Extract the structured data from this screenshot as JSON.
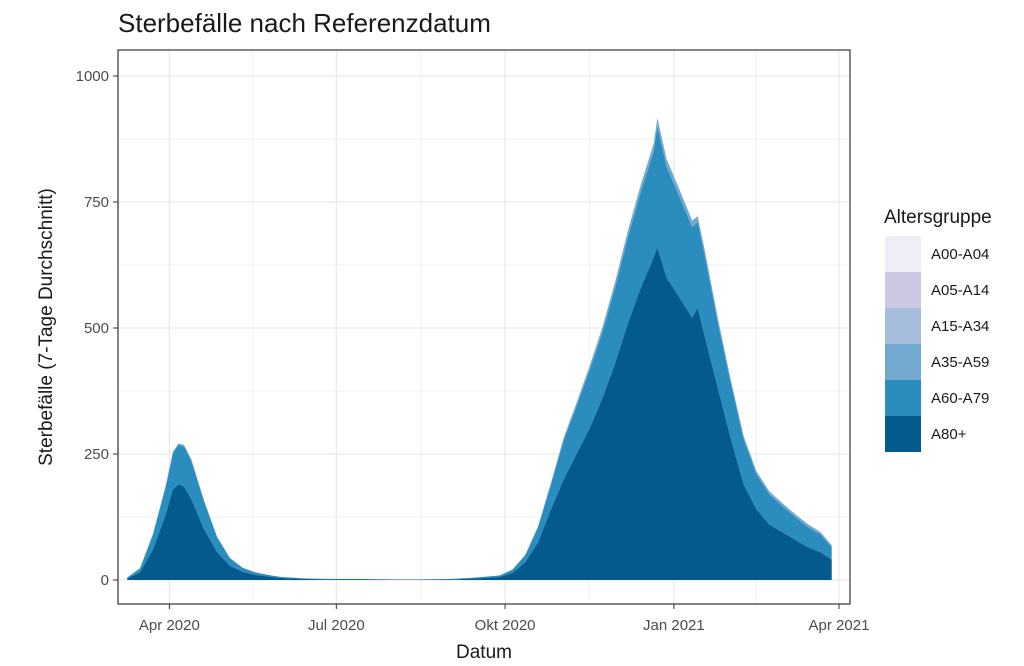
{
  "chart_data": {
    "type": "area",
    "stacked": true,
    "title": "Sterbefälle nach Referenzdatum",
    "xlabel": "Datum",
    "ylabel": "Sterbefälle (7-Tage Durchschnitt)",
    "ylim": [
      0,
      1000
    ],
    "y_ticks": [
      0,
      250,
      500,
      750,
      1000
    ],
    "y_tick_labels": [
      "0",
      "250",
      "500",
      "750",
      "1000"
    ],
    "x_ticks": [
      "2020-04-01",
      "2020-07-01",
      "2020-10-01",
      "2021-01-01",
      "2021-04-01"
    ],
    "x_tick_labels": [
      "Apr 2020",
      "Jul 2020",
      "Okt 2020",
      "Jan 2021",
      "Apr 2021"
    ],
    "xlim": [
      "2020-03-04",
      "2021-04-07"
    ],
    "grid": true,
    "legend_title": "Altersgruppe",
    "legend_position": "right",
    "dates": [
      "2020-03-09",
      "2020-03-16",
      "2020-03-23",
      "2020-03-30",
      "2020-04-03",
      "2020-04-06",
      "2020-04-09",
      "2020-04-13",
      "2020-04-20",
      "2020-04-27",
      "2020-05-04",
      "2020-05-11",
      "2020-05-18",
      "2020-05-25",
      "2020-06-01",
      "2020-06-15",
      "2020-07-01",
      "2020-07-15",
      "2020-08-01",
      "2020-08-15",
      "2020-09-01",
      "2020-09-15",
      "2020-09-28",
      "2020-10-05",
      "2020-10-12",
      "2020-10-19",
      "2020-10-26",
      "2020-11-02",
      "2020-11-09",
      "2020-11-16",
      "2020-11-23",
      "2020-11-30",
      "2020-12-07",
      "2020-12-14",
      "2020-12-21",
      "2020-12-23",
      "2020-12-28",
      "2021-01-04",
      "2021-01-11",
      "2021-01-14",
      "2021-01-18",
      "2021-01-25",
      "2021-02-01",
      "2021-02-08",
      "2021-02-15",
      "2021-02-22",
      "2021-03-01",
      "2021-03-08",
      "2021-03-15",
      "2021-03-22",
      "2021-03-28"
    ],
    "series": [
      {
        "name": "A00-A04",
        "color": "#efedf5",
        "values": [
          0,
          0,
          0,
          0,
          0,
          0,
          0,
          0,
          0,
          0,
          0,
          0,
          0,
          0,
          0,
          0,
          0,
          0,
          0,
          0,
          0,
          0,
          0,
          0,
          0,
          0,
          0,
          0,
          0,
          0,
          0,
          0,
          0,
          0,
          0,
          0,
          0,
          0,
          0,
          0,
          0,
          0,
          0,
          0,
          0,
          0,
          0,
          0,
          0,
          0,
          0
        ]
      },
      {
        "name": "A05-A14",
        "color": "#cbc9e2",
        "values": [
          0,
          0,
          0,
          0,
          0,
          0,
          0,
          0,
          0,
          0,
          0,
          0,
          0,
          0,
          0,
          0,
          0,
          0,
          0,
          0,
          0,
          0,
          0,
          0,
          0,
          0,
          0,
          0,
          0,
          0,
          0,
          0,
          0,
          0,
          0,
          0,
          0,
          0,
          0,
          0,
          0,
          0,
          0,
          0,
          0,
          0,
          0,
          0,
          0,
          0,
          0
        ]
      },
      {
        "name": "A15-A34",
        "color": "#a6bddb",
        "values": [
          0,
          0,
          0,
          0,
          0,
          0,
          0,
          0,
          0,
          0,
          0,
          0,
          0,
          0,
          0,
          0,
          0,
          0,
          0,
          0,
          0,
          0,
          0,
          0,
          0,
          0,
          0,
          0,
          0,
          0,
          0,
          0,
          0,
          0,
          0,
          0,
          0,
          0,
          0,
          0,
          0,
          0,
          0,
          0,
          0,
          0,
          0,
          0,
          0,
          0,
          0
        ]
      },
      {
        "name": "A35-A59",
        "color": "#74a9cf",
        "values": [
          0,
          0,
          1,
          2,
          3,
          3,
          3,
          3,
          2,
          1,
          1,
          0,
          0,
          0,
          0,
          0,
          0,
          0,
          0,
          0,
          0,
          0,
          0,
          1,
          1,
          2,
          3,
          5,
          7,
          9,
          11,
          12,
          14,
          15,
          16,
          17,
          16,
          15,
          13,
          12,
          11,
          9,
          7,
          6,
          6,
          6,
          6,
          6,
          6,
          5,
          4
        ]
      },
      {
        "name": "A60-A79",
        "color": "#2b8cbe",
        "values": [
          2,
          8,
          30,
          55,
          72,
          78,
          80,
          76,
          55,
          30,
          15,
          8,
          5,
          3,
          2,
          1,
          1,
          1,
          0,
          0,
          1,
          2,
          3,
          6,
          14,
          30,
          50,
          78,
          95,
          115,
          130,
          150,
          170,
          190,
          210,
          240,
          220,
          200,
          180,
          170,
          160,
          130,
          110,
          90,
          70,
          60,
          52,
          45,
          40,
          35,
          25
        ]
      },
      {
        "name": "A80+",
        "color": "#045a8d",
        "values": [
          3,
          15,
          60,
          130,
          180,
          190,
          185,
          160,
          100,
          55,
          28,
          16,
          10,
          7,
          4,
          2,
          1,
          1,
          1,
          1,
          1,
          3,
          6,
          14,
          35,
          75,
          140,
          200,
          250,
          300,
          360,
          430,
          510,
          580,
          640,
          660,
          600,
          560,
          520,
          540,
          480,
          380,
          280,
          190,
          140,
          110,
          95,
          80,
          65,
          55,
          40
        ]
      }
    ]
  }
}
